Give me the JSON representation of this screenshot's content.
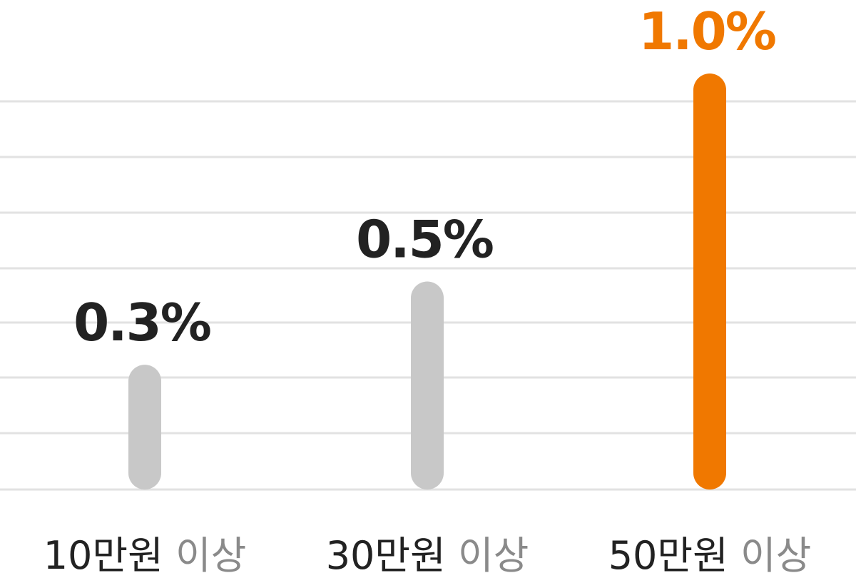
{
  "chart_data": {
    "type": "bar",
    "categories": [
      {
        "amount": "10만원",
        "suffix": "이상"
      },
      {
        "amount": "30만원",
        "suffix": "이상"
      },
      {
        "amount": "50만원",
        "suffix": "이상"
      }
    ],
    "values": [
      0.3,
      0.5,
      1.0
    ],
    "value_labels": [
      "0.3%",
      "0.5%",
      "1.0%"
    ],
    "ylim": [
      0,
      1.0
    ],
    "grid": true,
    "highlight_index": 2
  },
  "colors": {
    "bar_default": "#c8c8c8",
    "bar_highlight": "#f07800",
    "label_default": "#222222",
    "label_highlight": "#f07800",
    "grid": "#e2e2e2",
    "category_amount": "#222222",
    "category_suffix": "#8a8a8a"
  }
}
